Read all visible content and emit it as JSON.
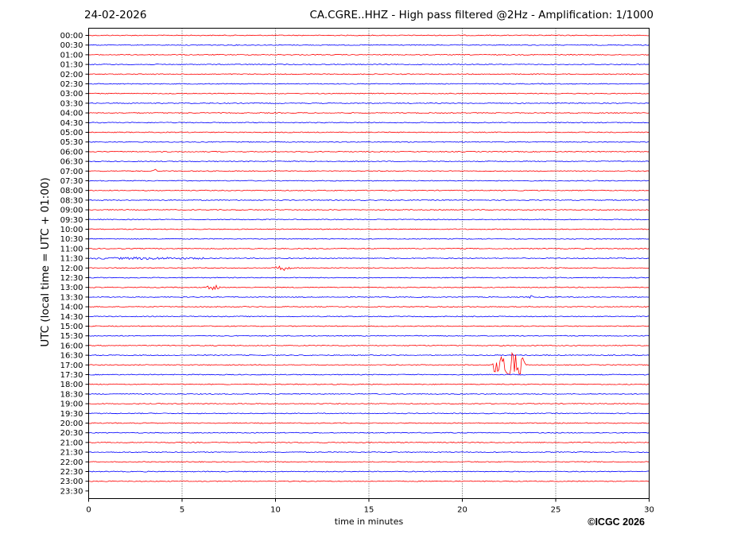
{
  "header": {
    "date": "24-02-2026",
    "title": "CA.CGRE..HHZ - High pass filtered @2Hz - Amplification: 1/1000"
  },
  "footer": {
    "copyright": "©ICGC 2026"
  },
  "colors": {
    "red": "#ff0000",
    "blue": "#0000ff",
    "grid": "#000000",
    "axis": "#000000"
  },
  "chart_data": {
    "type": "line",
    "title": "CA.CGRE..HHZ - High pass filtered @2Hz - Amplification: 1/1000",
    "xlabel": "time in minutes",
    "ylabel": "UTC (local time = UTC + 01:00)",
    "xlim": [
      0,
      30
    ],
    "x_ticks": [
      0,
      5,
      10,
      15,
      20,
      25,
      30
    ],
    "vertical_grid": "dotted at every x tick",
    "rows": [
      "00:00",
      "00:30",
      "01:00",
      "01:30",
      "02:00",
      "02:30",
      "03:00",
      "03:30",
      "04:00",
      "04:30",
      "05:00",
      "05:30",
      "06:00",
      "06:30",
      "07:00",
      "07:30",
      "08:00",
      "08:30",
      "09:00",
      "09:30",
      "10:00",
      "10:30",
      "11:00",
      "11:30",
      "12:00",
      "12:30",
      "13:00",
      "13:30",
      "14:00",
      "14:30",
      "15:00",
      "15:30",
      "16:00",
      "16:30",
      "17:00",
      "17:30",
      "18:00",
      "18:30",
      "19:00",
      "19:30",
      "20:00",
      "20:30",
      "21:00",
      "21:30",
      "22:00",
      "22:30",
      "23:00",
      "23:30"
    ],
    "trace_colors": "alternating by row: red for hh:00, blue for hh:30",
    "traces_present_until_row": "23:00",
    "events": [
      {
        "row": "07:00",
        "start_min": 3.4,
        "end_min": 3.7,
        "amplitude": 2
      },
      {
        "row": "11:30",
        "start_min": 0.0,
        "end_min": 6.5,
        "amplitude": 1.2
      },
      {
        "row": "12:00",
        "start_min": 10.0,
        "end_min": 10.8,
        "amplitude": 3
      },
      {
        "row": "13:00",
        "start_min": 6.3,
        "end_min": 7.2,
        "amplitude": 3
      },
      {
        "row": "13:30",
        "start_min": 23.6,
        "end_min": 23.8,
        "amplitude": 2
      },
      {
        "row": "17:00",
        "start_min": 21.6,
        "end_min": 23.4,
        "amplitude": 20
      }
    ]
  }
}
